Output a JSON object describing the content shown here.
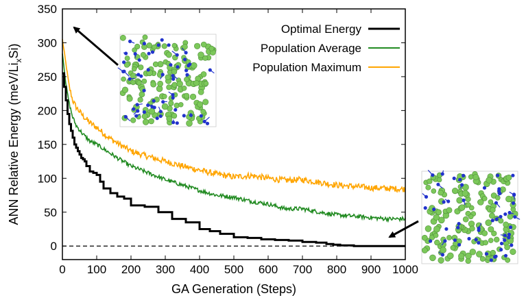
{
  "chart_data": {
    "type": "line",
    "xlabel": "GA Generation (Steps)",
    "ylabel_main": "ANN Relative Energy (meV/Li",
    "ylabel_sub": "x",
    "ylabel_tail": "Si)",
    "xlim": [
      0,
      1000
    ],
    "ylim": [
      -20,
      350
    ],
    "xticks": [
      "0",
      "100",
      "200",
      "300",
      "400",
      "500",
      "600",
      "700",
      "800",
      "900",
      "1000"
    ],
    "yticks": [
      "0",
      "50",
      "100",
      "150",
      "200",
      "250",
      "300",
      "350"
    ],
    "grid": false,
    "legend_position": "top-right",
    "reference_line": {
      "y": 0,
      "style": "dashed",
      "color": "#000000"
    },
    "series": [
      {
        "name": "Optimal Energy",
        "color": "#000000",
        "style": "step",
        "x": [
          0,
          5,
          10,
          15,
          20,
          25,
          30,
          35,
          40,
          45,
          50,
          55,
          60,
          65,
          70,
          80,
          90,
          100,
          110,
          120,
          140,
          160,
          180,
          200,
          240,
          280,
          320,
          360,
          400,
          430,
          460,
          500,
          540,
          580,
          620,
          660,
          700,
          740,
          770,
          790,
          810,
          830,
          850,
          900,
          1000
        ],
        "values": [
          255,
          235,
          215,
          195,
          180,
          170,
          160,
          150,
          145,
          140,
          135,
          130,
          128,
          125,
          118,
          110,
          108,
          105,
          95,
          85,
          78,
          73,
          70,
          60,
          58,
          50,
          40,
          35,
          25,
          22,
          18,
          13,
          12,
          10,
          9,
          8,
          6,
          5,
          3,
          2,
          1,
          1,
          0,
          0,
          0
        ]
      },
      {
        "name": "Population Average",
        "color": "#228b22",
        "style": "noisy",
        "x": [
          0,
          10,
          20,
          30,
          40,
          60,
          80,
          100,
          130,
          160,
          200,
          250,
          300,
          350,
          400,
          450,
          500,
          550,
          600,
          650,
          700,
          750,
          800,
          850,
          900,
          950,
          1000
        ],
        "values": [
          285,
          240,
          210,
          190,
          178,
          165,
          155,
          150,
          140,
          130,
          118,
          108,
          98,
          90,
          82,
          75,
          72,
          66,
          62,
          55,
          55,
          50,
          46,
          44,
          42,
          40,
          40
        ]
      },
      {
        "name": "Population Maximum",
        "color": "#ffa500",
        "style": "noisy",
        "x": [
          0,
          10,
          20,
          30,
          40,
          60,
          80,
          100,
          130,
          160,
          200,
          250,
          300,
          350,
          400,
          450,
          500,
          550,
          600,
          650,
          700,
          750,
          800,
          850,
          900,
          950,
          1000
        ],
        "values": [
          305,
          270,
          235,
          215,
          205,
          192,
          182,
          175,
          162,
          152,
          140,
          132,
          125,
          118,
          112,
          106,
          102,
          104,
          100,
          97,
          98,
          94,
          90,
          88,
          86,
          85,
          84
        ]
      }
    ]
  },
  "insets": [
    {
      "name": "initial-structure",
      "atom_colors": [
        "#7cc85a",
        "#2233cc"
      ]
    },
    {
      "name": "final-structure",
      "atom_colors": [
        "#7cc85a",
        "#2233cc"
      ]
    }
  ]
}
